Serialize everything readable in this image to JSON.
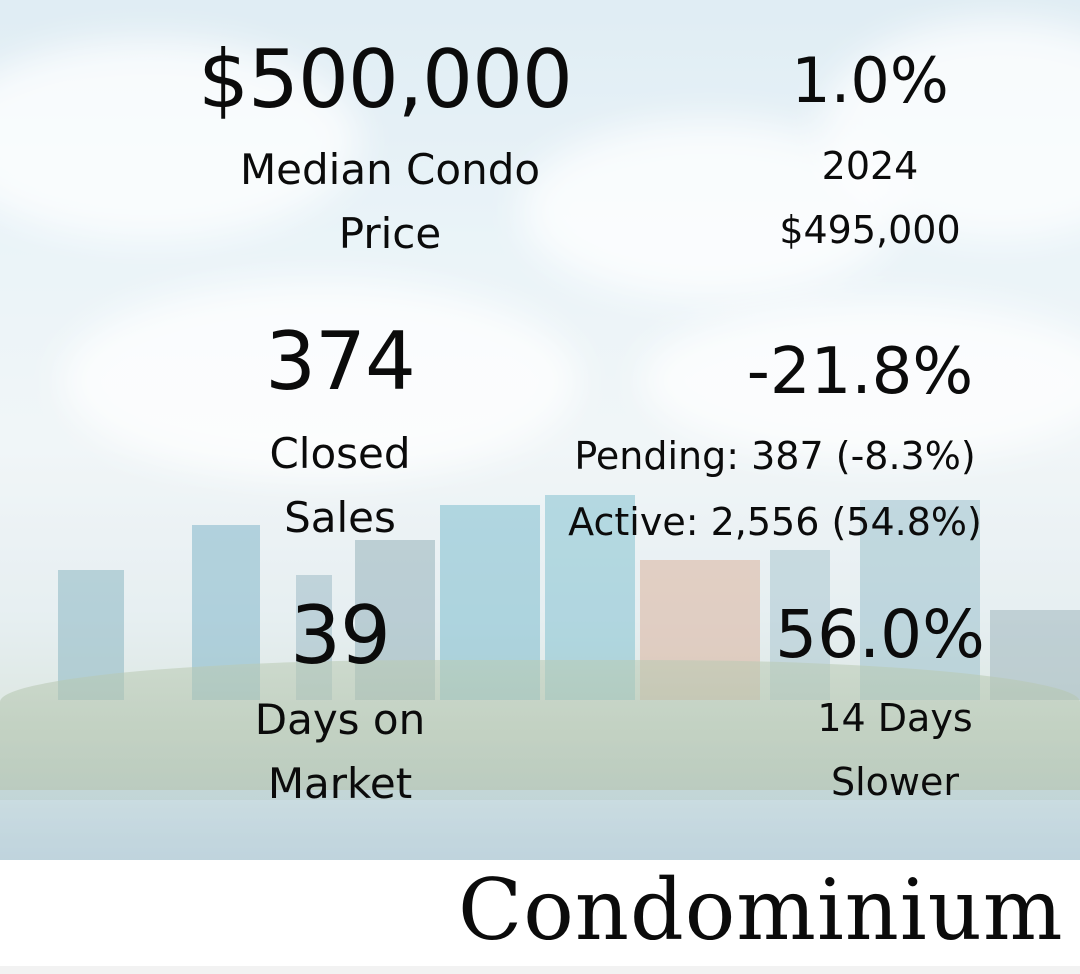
{
  "median_price": {
    "value": "$500,000",
    "label": "Median Condo Price"
  },
  "price_change": {
    "percent": "1.0%",
    "year": "2024",
    "prior_value": "$495,000"
  },
  "closed_sales": {
    "value": "374",
    "label": "Closed Sales"
  },
  "sales_change": {
    "percent": "-21.8%",
    "pending": "Pending: 387 (-8.3%)",
    "active": "Active: 2,556 (54.8%)"
  },
  "days_on_market": {
    "value": "39",
    "label": "Days on Market"
  },
  "dom_change": {
    "percent": "56.0%",
    "note": "14 Days Slower"
  },
  "footer": {
    "title": "Condominium"
  },
  "colors": {
    "text": "#0b0b0b",
    "sky": "#dfeef5",
    "background": "#ffffff"
  }
}
